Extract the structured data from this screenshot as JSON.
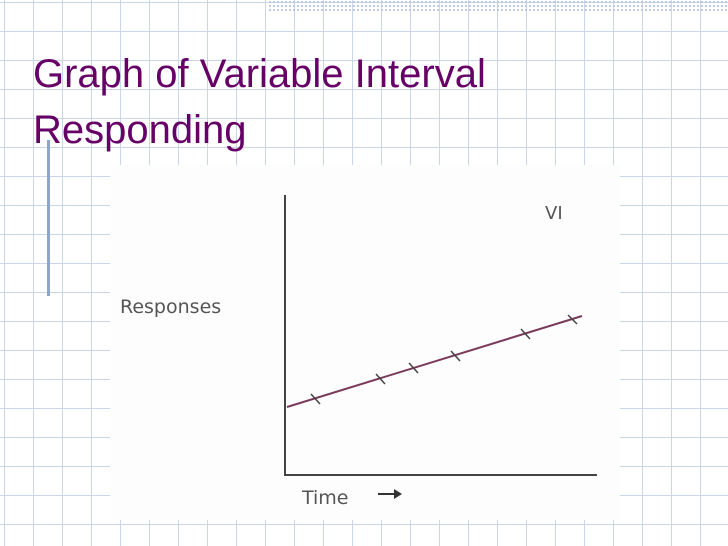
{
  "slide": {
    "title_lines": [
      "Graph of Variable Interval",
      "Responding"
    ]
  },
  "graph": {
    "y_label": "Responses",
    "x_label": "Time",
    "curve_label": "VI"
  }
}
